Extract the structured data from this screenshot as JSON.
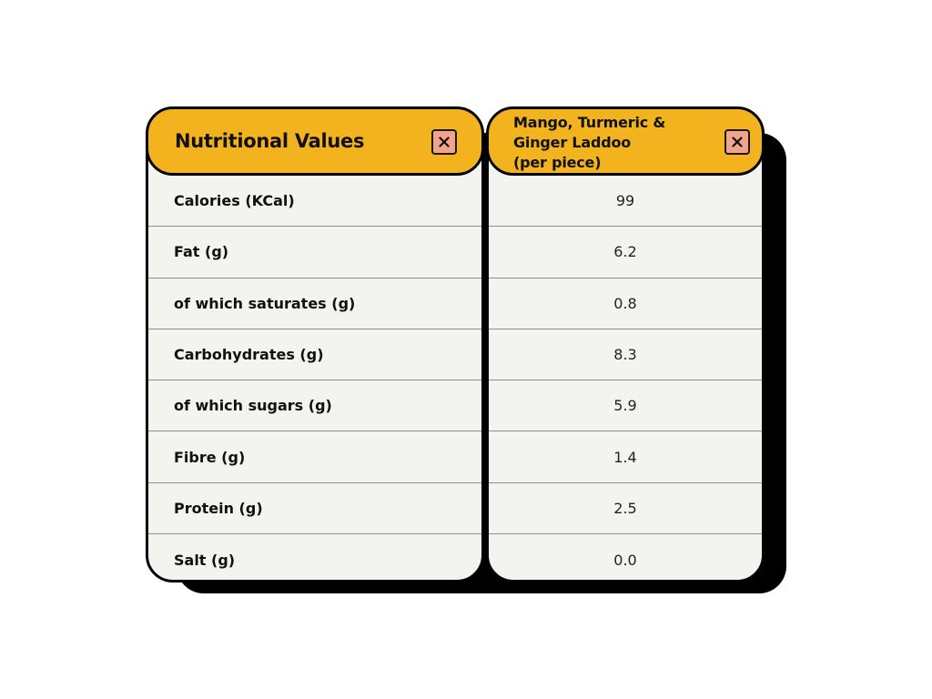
{
  "left_panel": {
    "title": "Nutritional Values",
    "close_icon": "close-icon",
    "rows": [
      "Calories (KCal)",
      "Fat (g)",
      "of which saturates (g)",
      "Carbohydrates (g)",
      "of which sugars (g)",
      "Fibre (g)",
      "Protein (g)",
      "Salt (g)"
    ]
  },
  "right_panel": {
    "title_lines": [
      "Mango, Turmeric &",
      "Ginger Laddoo",
      "(per piece)"
    ],
    "close_icon": "close-icon",
    "values": [
      "99",
      "6.2",
      "0.8",
      "8.3",
      "5.9",
      "1.4",
      "2.5",
      "0.0"
    ]
  },
  "colors": {
    "header": "#f3b31f",
    "close_button": "#f1a48c",
    "card_body": "#f3f4f0",
    "border": "#000000",
    "shadow": "#000000"
  }
}
